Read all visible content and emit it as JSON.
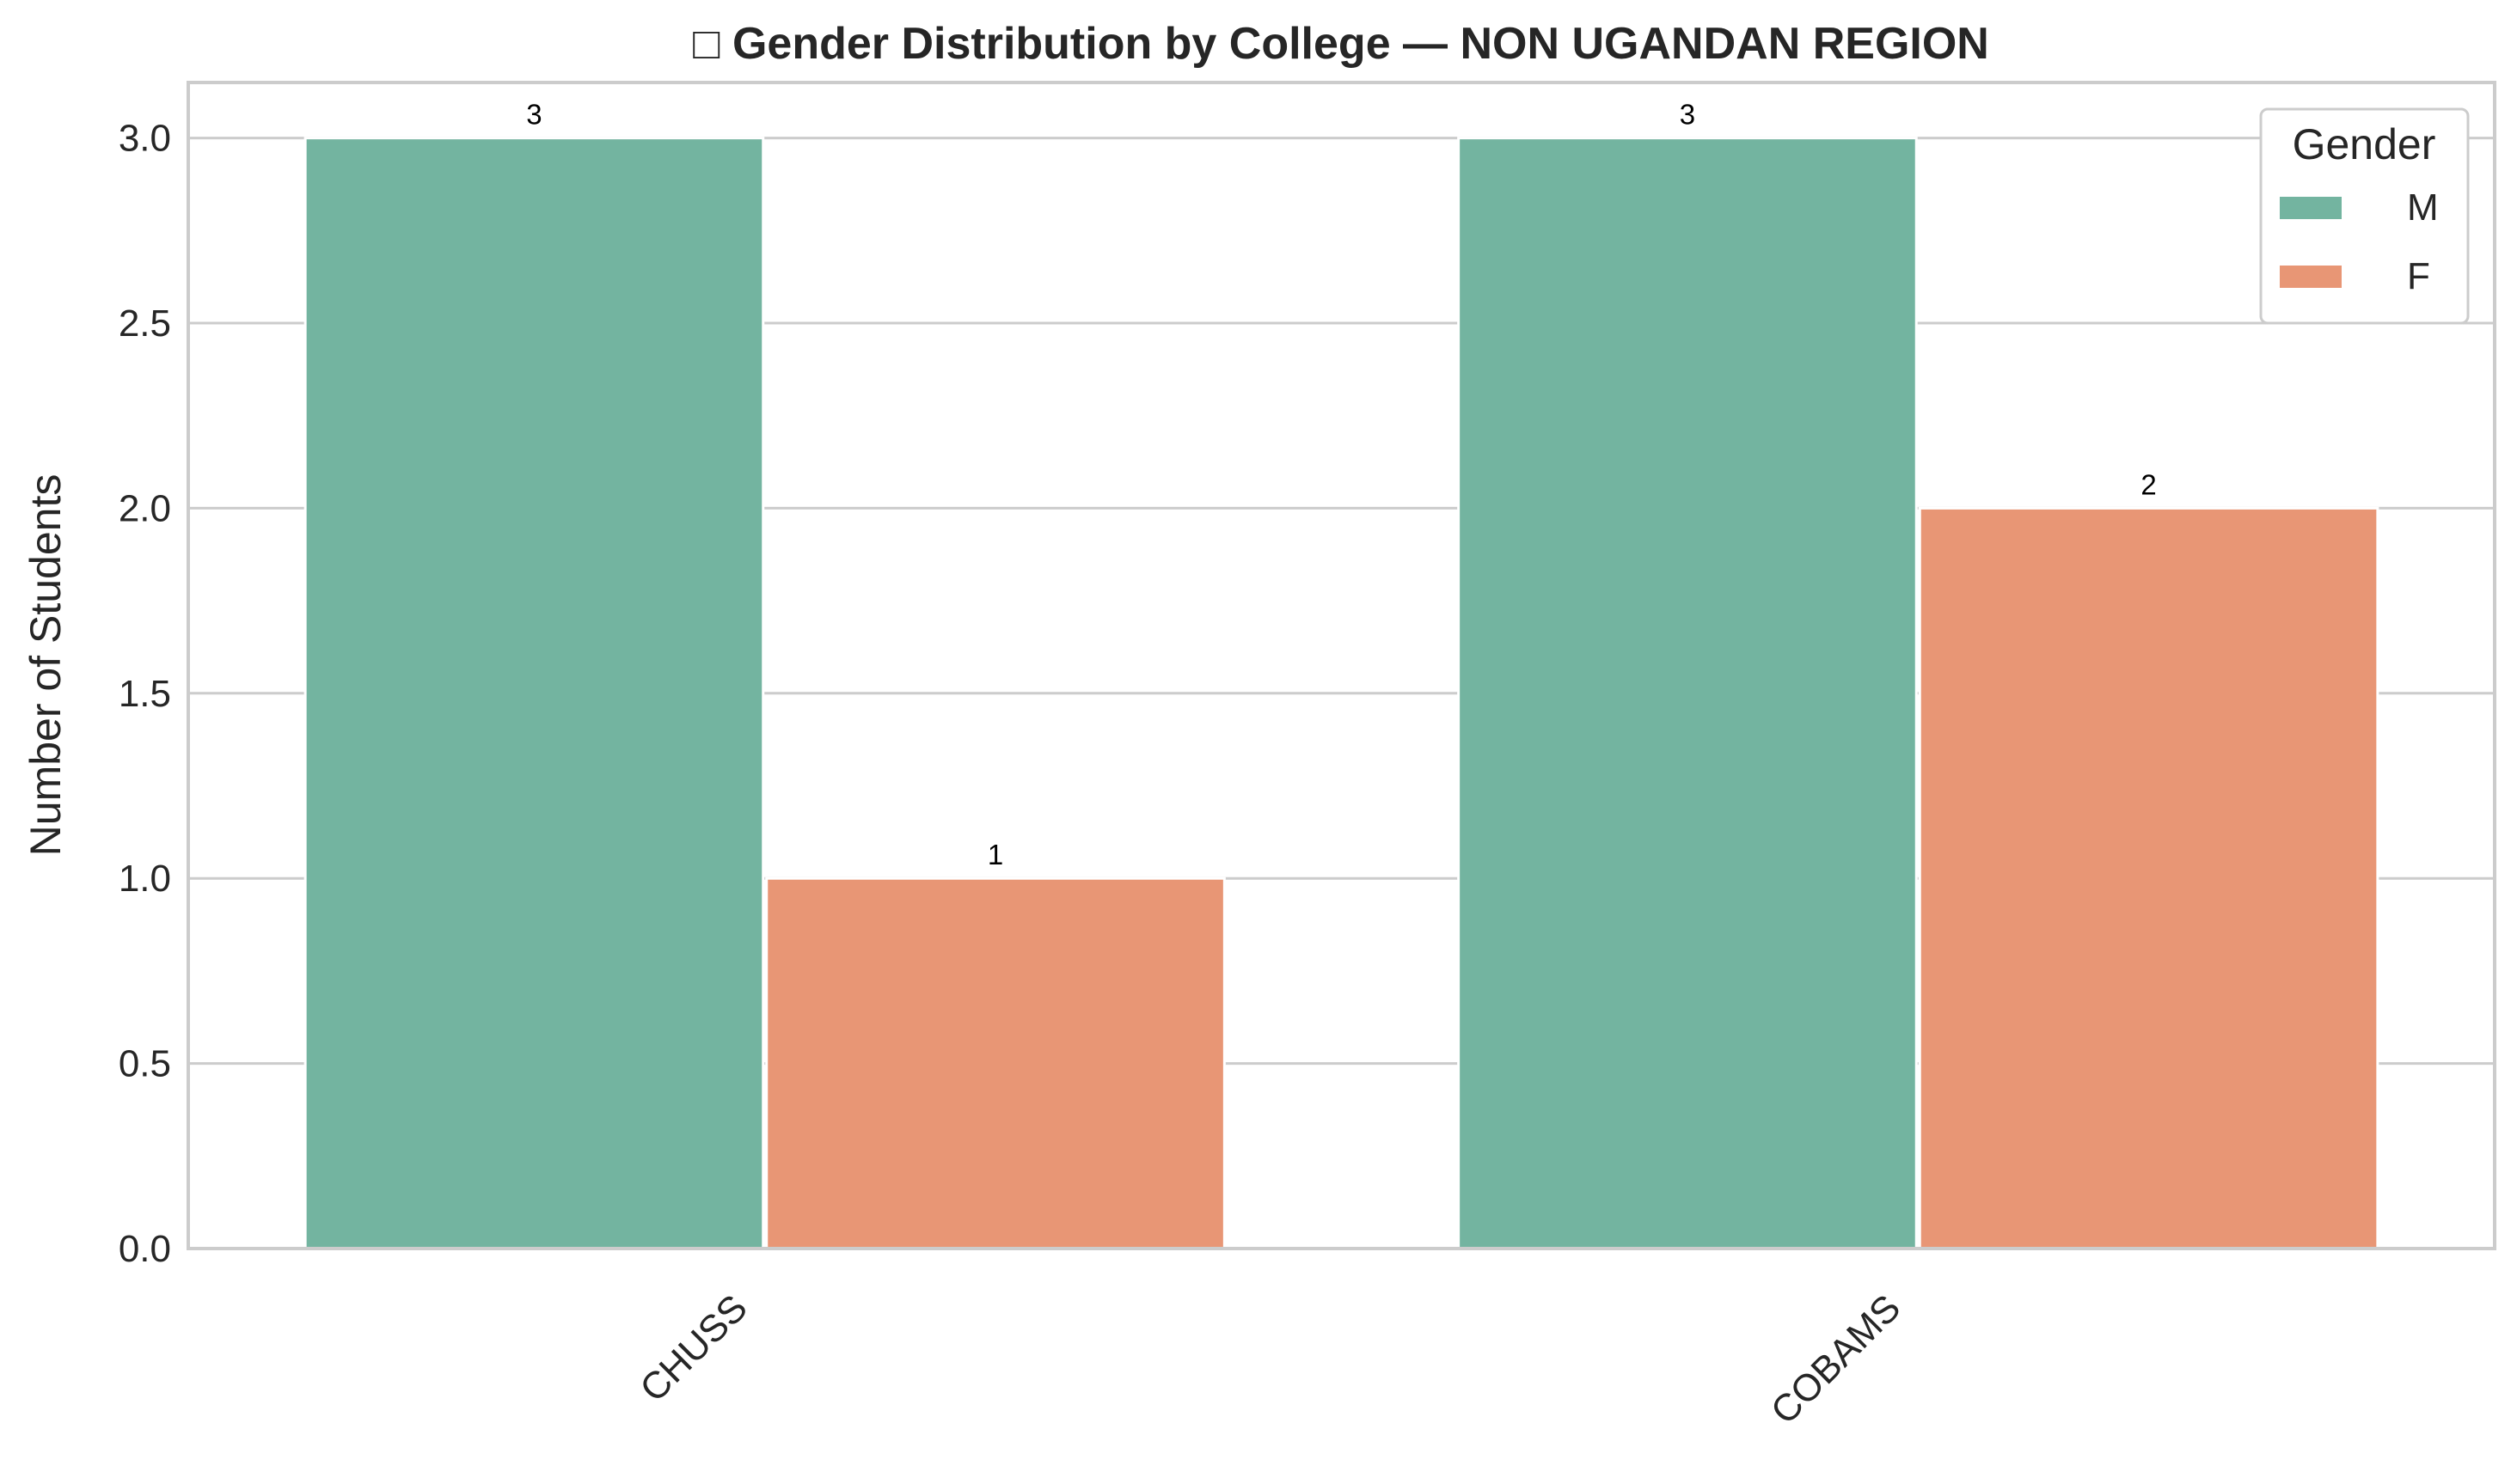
{
  "chart_data": {
    "type": "bar",
    "title": "□ Gender Distribution by College — NON UGANDAN REGION",
    "xlabel": "",
    "ylabel": "Number of Students",
    "categories": [
      "CHUSS",
      "COBAMS"
    ],
    "series": [
      {
        "name": "M",
        "values": [
          3,
          3
        ],
        "labels": [
          "3",
          "3"
        ],
        "color": "#73b4a0"
      },
      {
        "name": "F",
        "values": [
          1,
          2
        ],
        "labels": [
          "1",
          "2"
        ],
        "color": "#e89675"
      }
    ],
    "ylim": [
      0,
      3.15
    ],
    "yticks": [
      0.0,
      0.5,
      1.0,
      1.5,
      2.0,
      2.5,
      3.0
    ],
    "ytick_labels": [
      "0.0",
      "0.5",
      "1.0",
      "1.5",
      "2.0",
      "2.5",
      "3.0"
    ],
    "grid": true,
    "legend": {
      "title": "Gender",
      "position": "top-right"
    }
  }
}
